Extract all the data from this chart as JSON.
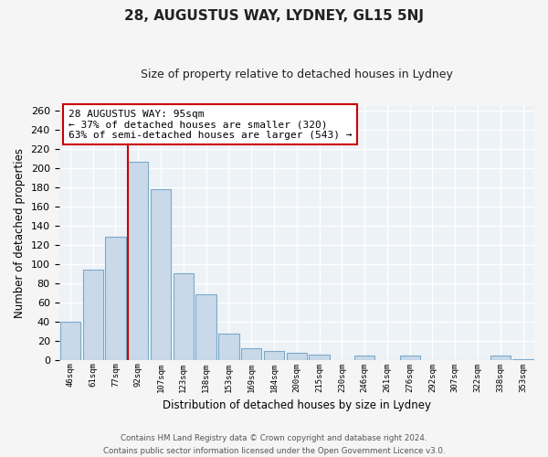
{
  "title": "28, AUGUSTUS WAY, LYDNEY, GL15 5NJ",
  "subtitle": "Size of property relative to detached houses in Lydney",
  "xlabel": "Distribution of detached houses by size in Lydney",
  "ylabel": "Number of detached properties",
  "categories": [
    "46sqm",
    "61sqm",
    "77sqm",
    "92sqm",
    "107sqm",
    "123sqm",
    "138sqm",
    "153sqm",
    "169sqm",
    "184sqm",
    "200sqm",
    "215sqm",
    "230sqm",
    "246sqm",
    "261sqm",
    "276sqm",
    "292sqm",
    "307sqm",
    "322sqm",
    "338sqm",
    "353sqm"
  ],
  "values": [
    40,
    94,
    128,
    206,
    178,
    90,
    68,
    27,
    12,
    9,
    7,
    5,
    0,
    4,
    0,
    4,
    0,
    0,
    0,
    4,
    1
  ],
  "bar_color": "#c9d9ea",
  "bar_edge_color": "#7aaac8",
  "highlight_index": 3,
  "highlight_line_color": "#cc0000",
  "ylim": [
    0,
    265
  ],
  "yticks": [
    0,
    20,
    40,
    60,
    80,
    100,
    120,
    140,
    160,
    180,
    200,
    220,
    240,
    260
  ],
  "annotation_title": "28 AUGUSTUS WAY: 95sqm",
  "annotation_line1": "← 37% of detached houses are smaller (320)",
  "annotation_line2": "63% of semi-detached houses are larger (543) →",
  "annotation_box_edge": "#cc0000",
  "footer_line1": "Contains HM Land Registry data © Crown copyright and database right 2024.",
  "footer_line2": "Contains public sector information licensed under the Open Government Licence v3.0.",
  "background_color": "#f5f5f5",
  "plot_background": "#edf2f7"
}
